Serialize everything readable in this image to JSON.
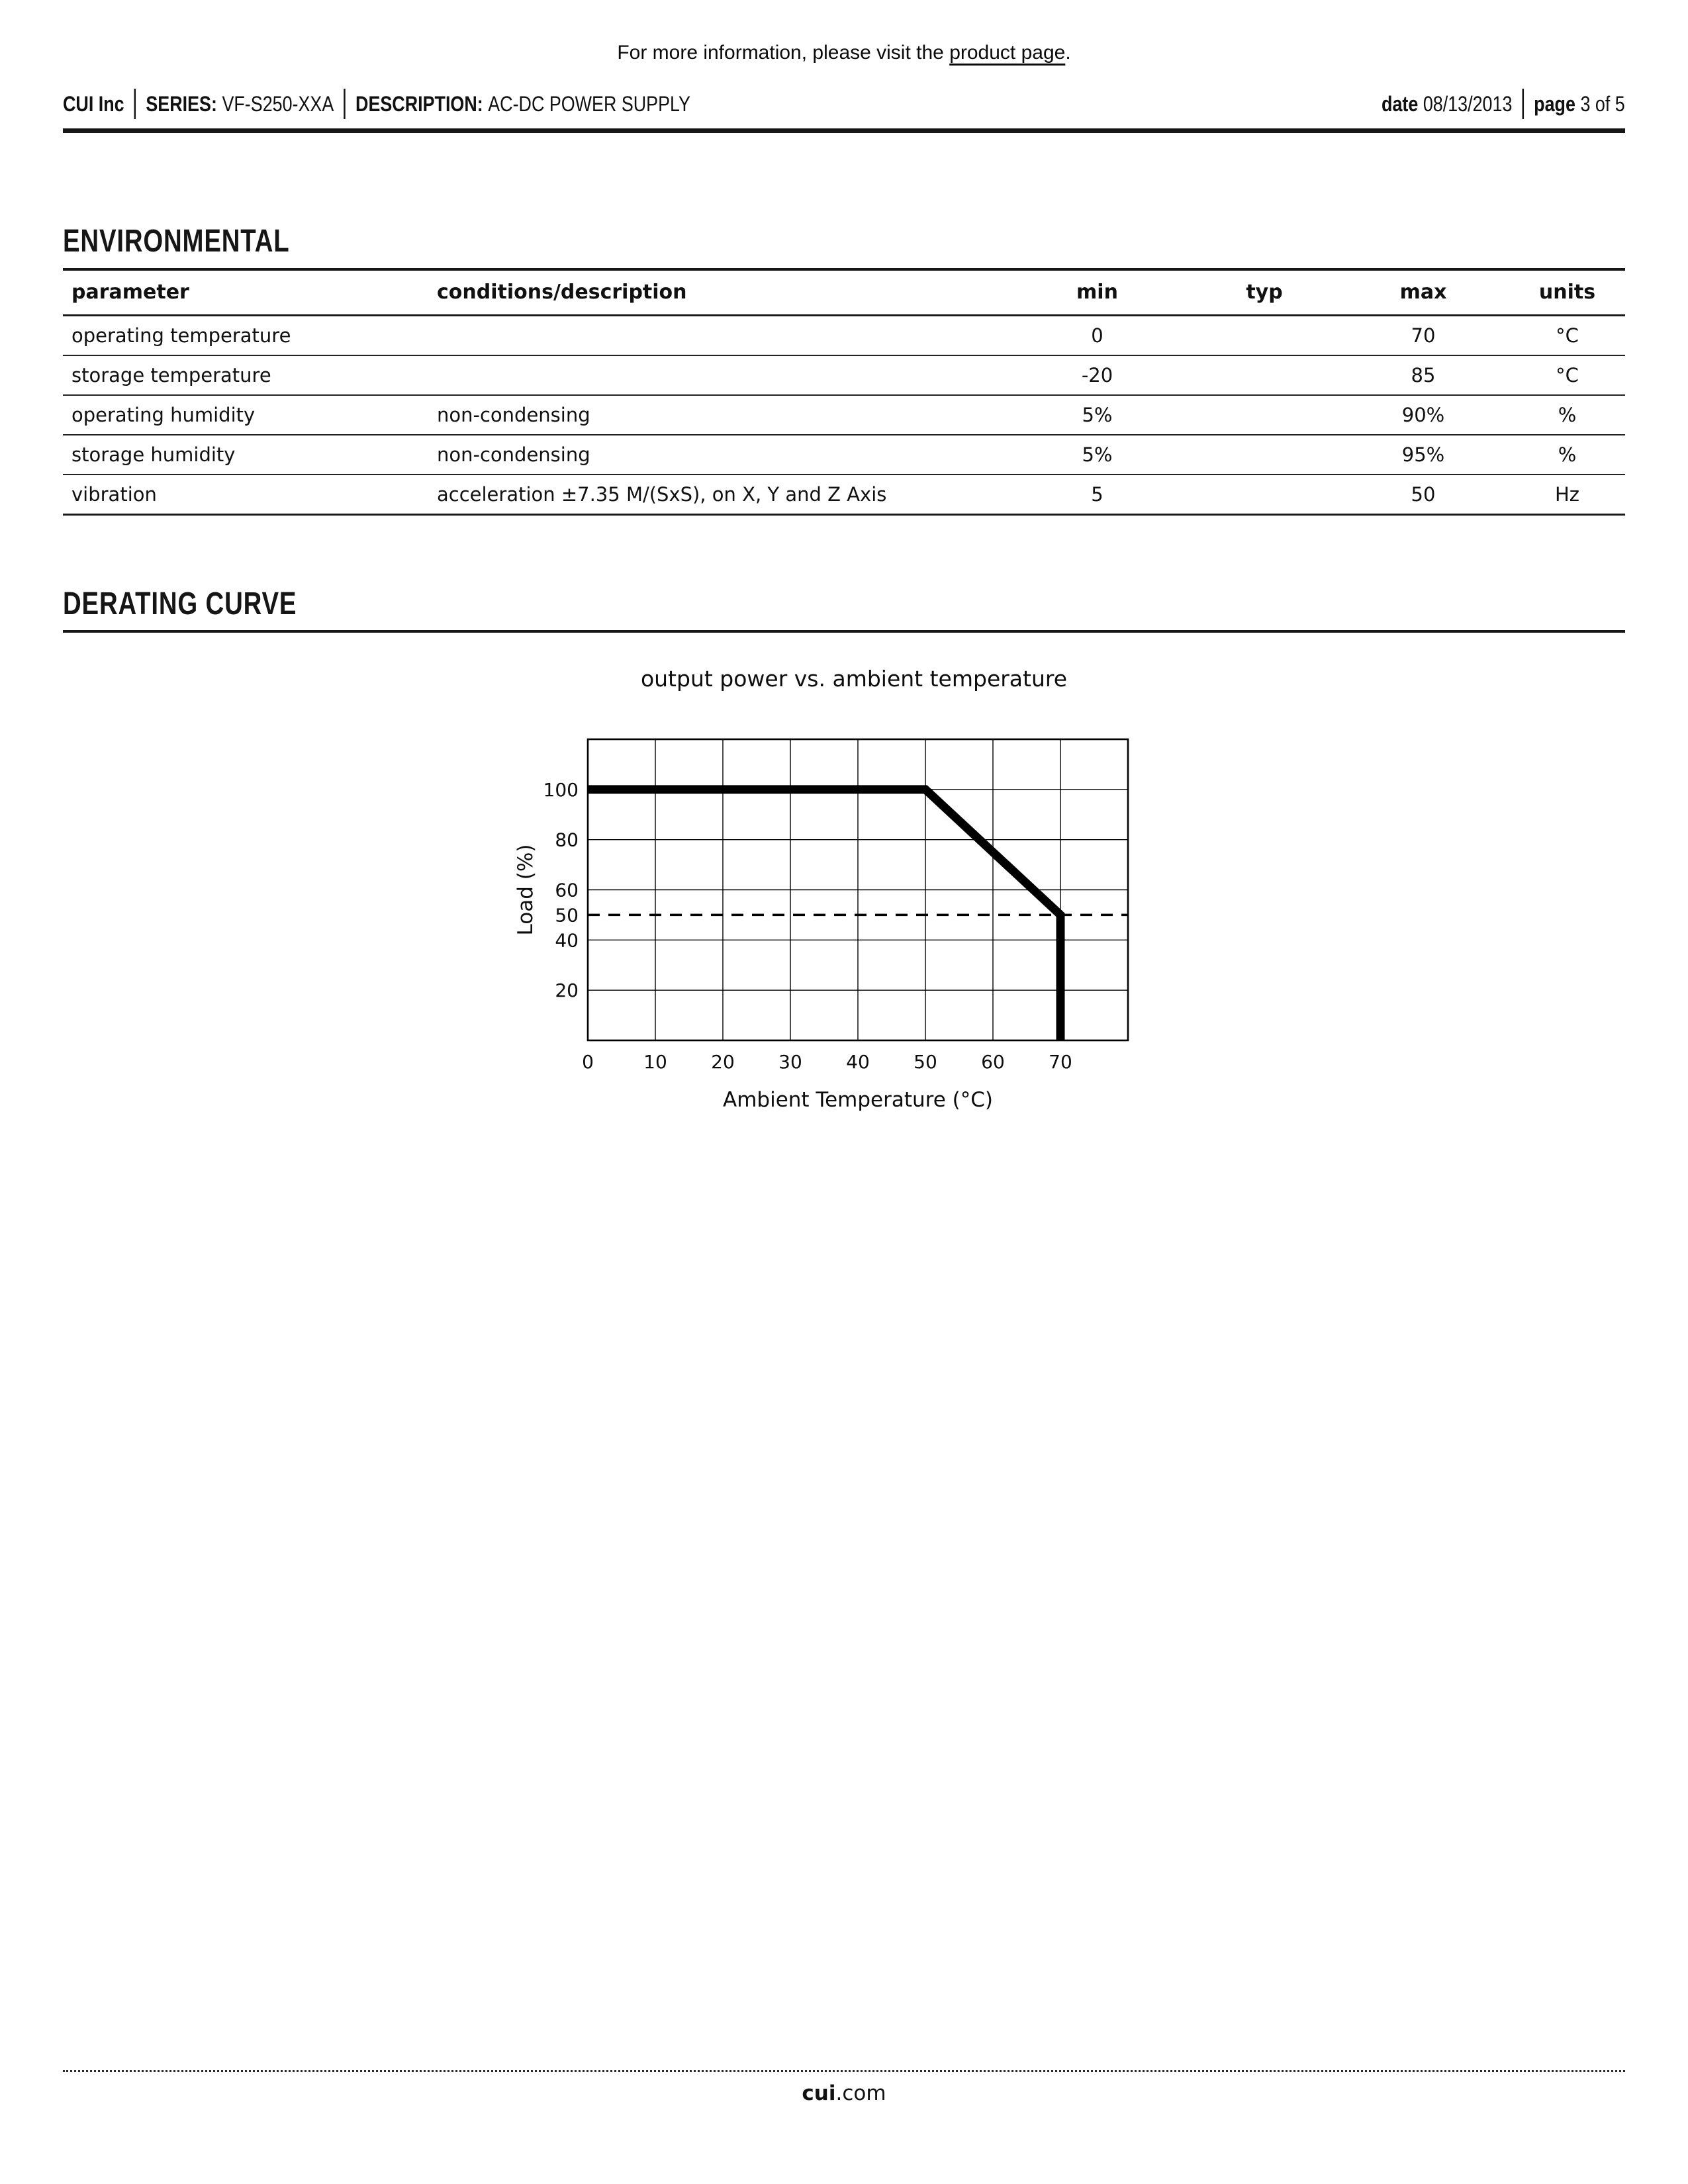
{
  "ink": "#111111",
  "info_line": {
    "prefix": "For more information, please visit the ",
    "link": "product page",
    "suffix": "."
  },
  "header": {
    "brand": "CUI Inc",
    "series_label": "SERIES:",
    "series_value": "VF-S250-XXA",
    "description_label": "DESCRIPTION:",
    "description_value": "AC-DC POWER SUPPLY",
    "date_label": "date",
    "date_value": "08/13/2013",
    "page_label": "page",
    "page_value": "3 of 5"
  },
  "environmental": {
    "title": "ENVIRONMENTAL",
    "table": {
      "headers": [
        "parameter",
        "conditions/description",
        "min",
        "typ",
        "max",
        "units"
      ],
      "rows": [
        {
          "parameter": "operating temperature",
          "conditions": "",
          "min": "0",
          "typ": "",
          "max": "70",
          "units": "°C"
        },
        {
          "parameter": "storage temperature",
          "conditions": "",
          "min": "-20",
          "typ": "",
          "max": "85",
          "units": "°C"
        },
        {
          "parameter": "operating humidity",
          "conditions": "non-condensing",
          "min": "5%",
          "typ": "",
          "max": "90%",
          "units": "%"
        },
        {
          "parameter": "storage humidity",
          "conditions": "non-condensing",
          "min": "5%",
          "typ": "",
          "max": "95%",
          "units": "%"
        },
        {
          "parameter": "vibration",
          "conditions": "acceleration ±7.35 M/(SxS), on X, Y and Z Axis",
          "min": "5",
          "typ": "",
          "max": "50",
          "units": "Hz"
        }
      ]
    }
  },
  "derating": {
    "title": "DERATING CURVE"
  },
  "chart_data": {
    "type": "line",
    "title": "output power vs. ambient temperature",
    "xlabel": "Ambient Temperature (°C)",
    "ylabel": "Load (%)",
    "xlim": [
      0,
      80
    ],
    "ylim": [
      0,
      120
    ],
    "x_ticks": [
      0,
      10,
      20,
      30,
      40,
      50,
      60,
      70
    ],
    "y_ticks": [
      20,
      40,
      50,
      60,
      80,
      100
    ],
    "x_gridlines": [
      10,
      20,
      30,
      40,
      50,
      60,
      70
    ],
    "y_gridlines": [
      20,
      40,
      60,
      80,
      100
    ],
    "grid": "on",
    "legend": "none",
    "reference_lines": [
      {
        "axis": "y",
        "value": 50,
        "style": "dashed",
        "stroke_width": 3.5
      }
    ],
    "series": [
      {
        "name": "derating curve",
        "x": [
          0,
          50,
          70,
          70
        ],
        "y": [
          100,
          100,
          50,
          0
        ],
        "style": "solid",
        "stroke_width": 13
      }
    ]
  },
  "footer": {
    "domain_bold": "cui",
    "domain_rest": ".com"
  }
}
